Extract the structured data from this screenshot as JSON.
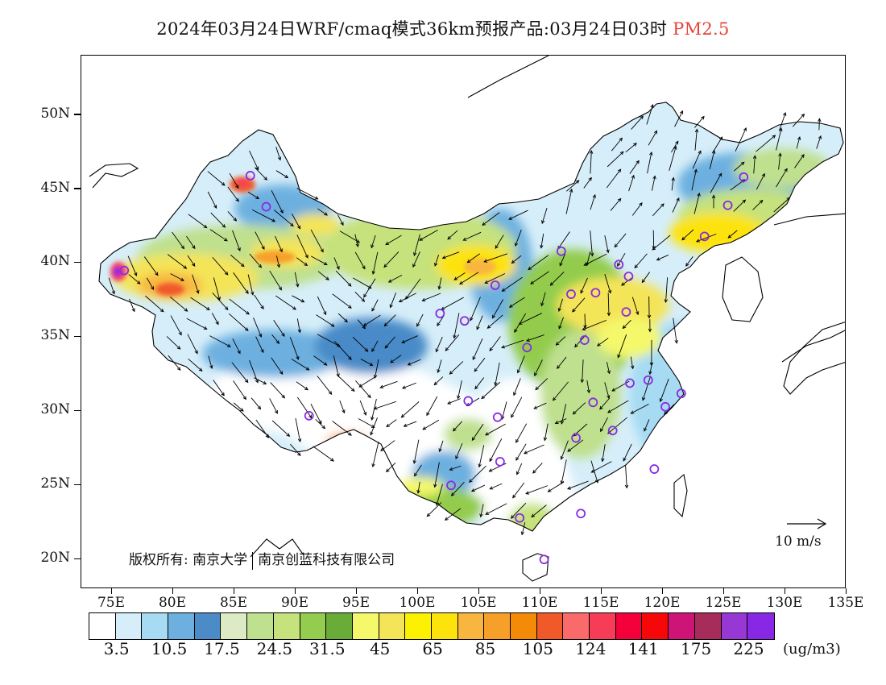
{
  "title": {
    "main": "2024年03月24日WRF/cmaq模式36km预报产品:03月24日03时",
    "pollutant": "PM2.5"
  },
  "axes": {
    "lat_labels": [
      "50N",
      "45N",
      "40N",
      "35N",
      "30N",
      "25N",
      "20N"
    ],
    "lon_labels": [
      "75E",
      "80E",
      "85E",
      "90E",
      "95E",
      "100E",
      "105E",
      "110E",
      "115E",
      "120E",
      "125E",
      "130E",
      "135E"
    ]
  },
  "copyright": {
    "prefix": "版权所有:",
    "org1": "南京大学",
    "org2": "南京创蓝科技有限公司"
  },
  "wind_scale": {
    "label": "10 m/s"
  },
  "legend": {
    "colors": [
      "#ffffff",
      "#d6eef9",
      "#a6dbf3",
      "#6db0e0",
      "#4a8bc8",
      "#dcebc4",
      "#bfe08e",
      "#c5e27c",
      "#93cc4e",
      "#6aac38",
      "#f4f86a",
      "#f4e458",
      "#fbf100",
      "#fde30c",
      "#f8b640",
      "#f6a02a",
      "#f38a08",
      "#f05a2a",
      "#fb6a6a",
      "#f73c58",
      "#f4003a",
      "#f70808",
      "#cf1478",
      "#a62c5a",
      "#9838d4",
      "#8828e4"
    ],
    "labels": [
      "3.5",
      "10.5",
      "17.5",
      "24.5",
      "31.5",
      "45",
      "65",
      "85",
      "105",
      "124",
      "141",
      "175",
      "225"
    ],
    "unit": "(ug/m3)"
  },
  "colors": {
    "title_highlight": "#e8423a",
    "frame": "#000000",
    "marker": "#8a2be2"
  },
  "map": {
    "region": "China",
    "variable": "PM2.5 concentration with wind vectors",
    "lon_range": [
      72.5,
      135
    ],
    "lat_range": [
      18,
      54
    ],
    "city_markers": [
      [
        86.3,
        45.9
      ],
      [
        87.6,
        43.8
      ],
      [
        76.0,
        39.5
      ],
      [
        101.8,
        36.6
      ],
      [
        103.8,
        36.1
      ],
      [
        106.3,
        38.5
      ],
      [
        108.9,
        34.3
      ],
      [
        111.7,
        40.8
      ],
      [
        112.5,
        37.9
      ],
      [
        114.5,
        38.0
      ],
      [
        116.4,
        39.9
      ],
      [
        117.2,
        39.1
      ],
      [
        117.0,
        36.7
      ],
      [
        113.6,
        34.8
      ],
      [
        126.6,
        45.8
      ],
      [
        125.3,
        43.9
      ],
      [
        123.4,
        41.8
      ],
      [
        91.1,
        29.7
      ],
      [
        104.1,
        30.7
      ],
      [
        106.5,
        29.6
      ],
      [
        106.7,
        26.6
      ],
      [
        102.7,
        25.0
      ],
      [
        108.3,
        22.8
      ],
      [
        110.3,
        20.0
      ],
      [
        113.3,
        23.1
      ],
      [
        112.9,
        28.2
      ],
      [
        114.3,
        30.6
      ],
      [
        115.9,
        28.7
      ],
      [
        117.3,
        31.9
      ],
      [
        118.8,
        32.1
      ],
      [
        120.2,
        30.3
      ],
      [
        121.5,
        31.2
      ],
      [
        119.3,
        26.1
      ]
    ]
  }
}
